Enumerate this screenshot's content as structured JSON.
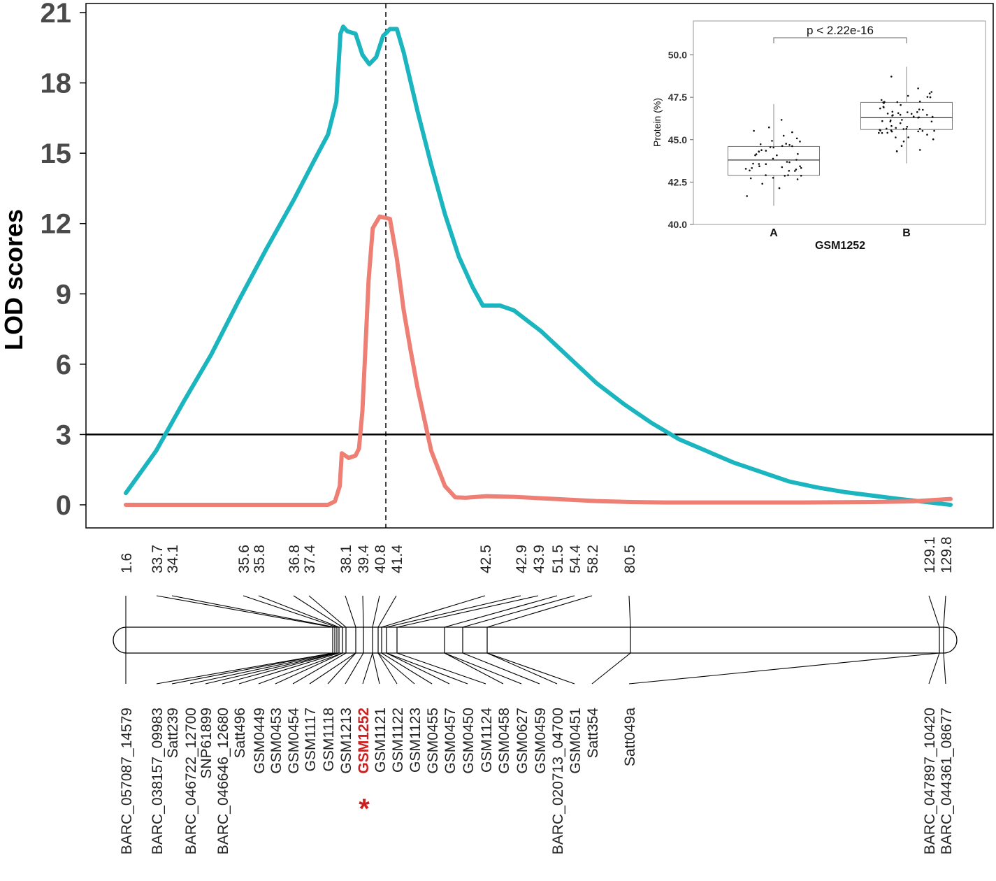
{
  "chart_data": [
    {
      "type": "line",
      "ylabel": "LOD scores",
      "ylim": [
        0,
        21
      ],
      "yticks": [
        0,
        3,
        6,
        9,
        12,
        15,
        18,
        21
      ],
      "threshold": 3,
      "x_unit": "cM (scaled position along linkage group)",
      "qtl_marker_position": 39.4,
      "series": [
        {
          "name": "series-teal",
          "color": "#1ab5bf",
          "points": [
            [
              1.6,
              0.5
            ],
            [
              6,
              2.3
            ],
            [
              10,
              4.4
            ],
            [
              14,
              6.4
            ],
            [
              18,
              8.7
            ],
            [
              22,
              10.9
            ],
            [
              26,
              13.0
            ],
            [
              29,
              14.7
            ],
            [
              31,
              15.8
            ],
            [
              32.2,
              17.2
            ],
            [
              32.8,
              20.1
            ],
            [
              33.2,
              20.4
            ],
            [
              33.8,
              20.2
            ],
            [
              35,
              20.1
            ],
            [
              36,
              19.2
            ],
            [
              37,
              18.8
            ],
            [
              38,
              19.1
            ],
            [
              39,
              20.0
            ],
            [
              40,
              20.3
            ],
            [
              41,
              20.3
            ],
            [
              42,
              19.3
            ],
            [
              44,
              16.8
            ],
            [
              46,
              14.5
            ],
            [
              48,
              12.4
            ],
            [
              50,
              10.6
            ],
            [
              52,
              9.3
            ],
            [
              53.5,
              8.5
            ],
            [
              56,
              8.5
            ],
            [
              58,
              8.3
            ],
            [
              62,
              7.4
            ],
            [
              66,
              6.3
            ],
            [
              70,
              5.2
            ],
            [
              74,
              4.3
            ],
            [
              78,
              3.5
            ],
            [
              82,
              2.8
            ],
            [
              86,
              2.3
            ],
            [
              90,
              1.8
            ],
            [
              94,
              1.4
            ],
            [
              98,
              1.0
            ],
            [
              102,
              0.75
            ],
            [
              106,
              0.55
            ],
            [
              110,
              0.4
            ],
            [
              114,
              0.25
            ],
            [
              118,
              0.12
            ],
            [
              121.5,
              0.0
            ]
          ]
        },
        {
          "name": "series-salmon",
          "color": "#ee7f74",
          "points": [
            [
              1.6,
              0.0
            ],
            [
              10,
              0.0
            ],
            [
              20,
              0.0
            ],
            [
              31,
              0.0
            ],
            [
              32,
              0.15
            ],
            [
              32.7,
              0.8
            ],
            [
              33,
              2.2
            ],
            [
              34,
              2.0
            ],
            [
              35,
              2.1
            ],
            [
              35.5,
              2.4
            ],
            [
              36,
              4.0
            ],
            [
              36.4,
              6.5
            ],
            [
              36.9,
              9.6
            ],
            [
              37.5,
              11.8
            ],
            [
              38.5,
              12.3
            ],
            [
              40,
              12.2
            ],
            [
              41,
              10.5
            ],
            [
              42,
              8.3
            ],
            [
              43,
              6.6
            ],
            [
              44,
              5.0
            ],
            [
              46,
              2.3
            ],
            [
              48,
              0.8
            ],
            [
              49.5,
              0.32
            ],
            [
              51,
              0.3
            ],
            [
              54,
              0.37
            ],
            [
              58,
              0.34
            ],
            [
              62,
              0.28
            ],
            [
              66,
              0.22
            ],
            [
              70,
              0.16
            ],
            [
              75,
              0.12
            ],
            [
              80,
              0.1
            ],
            [
              90,
              0.1
            ],
            [
              100,
              0.1
            ],
            [
              110,
              0.12
            ],
            [
              116,
              0.15
            ],
            [
              121.5,
              0.25
            ]
          ]
        }
      ]
    },
    {
      "type": "box",
      "title": "p < 2.22e-16",
      "xlabel": "GSM1252",
      "ylabel": "Protein (%)",
      "ylim": [
        40.0,
        52.0
      ],
      "yticks": [
        "40.0",
        "42.5",
        "45.0",
        "47.5",
        "50.0"
      ],
      "categories": [
        "A",
        "B"
      ],
      "boxes": [
        {
          "name": "A",
          "whisker_low": 41.1,
          "q1": 42.9,
          "median": 43.8,
          "q3": 44.6,
          "whisker_high": 47.1,
          "n_points": 50
        },
        {
          "name": "B",
          "whisker_low": 43.6,
          "q1": 45.6,
          "median": 46.3,
          "q3": 47.2,
          "whisker_high": 49.3,
          "n_points": 65
        }
      ]
    },
    {
      "type": "linkage-map",
      "positions": [
        "1.6",
        "33.7",
        "34.1",
        "35.6",
        "35.8",
        "36.8",
        "37.4",
        "38.1",
        "39.4",
        "40.8",
        "41.4",
        "42.5",
        "42.9",
        "43.9",
        "51.5",
        "54.4",
        "58.2",
        "80.5",
        "129.1",
        "129.8"
      ],
      "markers": [
        "BARC_057087_14579",
        "BARC_038157_09983",
        "Satt239",
        "BARC_046722_12700",
        "SNP61899",
        "BARC_046646_12680",
        "Satt496",
        "GSM0449",
        "GSM0453",
        "GSM0454",
        "GSM1117",
        "GSM1118",
        "GSM1213",
        "GSM1252",
        "GSM1121",
        "GSM1122",
        "GSM1123",
        "GSM0455",
        "GSM0457",
        "GSM0450",
        "GSM1124",
        "GSM0458",
        "GSM0627",
        "GSM0459",
        "BARC_020713_04700",
        "GSM0451",
        "Satt354",
        "Satt049a",
        "BARC_047897_10420",
        "BARC_044361_08677"
      ],
      "highlight_marker": "GSM1252",
      "highlight_symbol": "*",
      "highlight_color": "#cc1f1f"
    }
  ]
}
